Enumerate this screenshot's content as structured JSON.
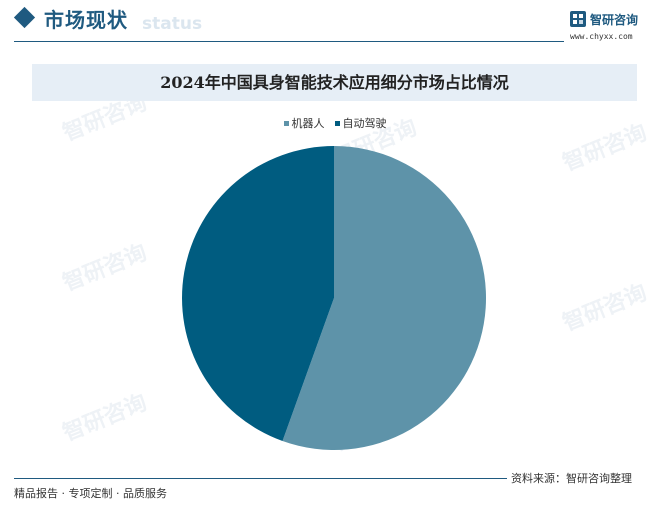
{
  "header": {
    "title": "市场现状",
    "ghost_text": "status"
  },
  "brand": {
    "name": "智研咨询",
    "url": "www.chyxx.com"
  },
  "watermark_text": "智研咨询",
  "chart_data": {
    "type": "pie",
    "title": "2024年中国具身智能技术应用细分市场占比情况",
    "categories": [
      "机器人",
      "自动驾驶"
    ],
    "values": [
      55.5,
      44.5
    ],
    "colors": [
      "#5e93a9",
      "#005c80"
    ],
    "legend_position": "top-center",
    "start_angle": "12 o'clock",
    "direction": "clockwise"
  },
  "footer": {
    "source": "资料来源：智研咨询整理",
    "slogan": "精品报告 · 专项定制 · 品质服务"
  }
}
